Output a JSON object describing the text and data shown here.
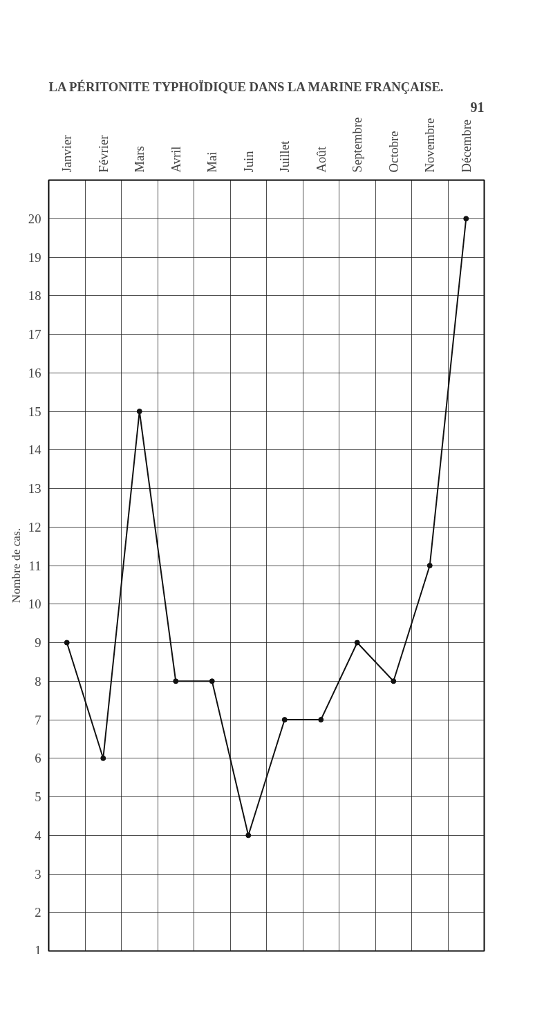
{
  "chart_data": {
    "type": "line",
    "title": "LA PÉRITONITE TYPHOÏDIQUE DANS LA MARINE FRANÇAISE.",
    "ylabel": "Nombre de cas.",
    "annotations": [
      "91"
    ],
    "categories": [
      "Janvier",
      "Février",
      "Mars",
      "Avril",
      "Mai",
      "Juin",
      "Juillet",
      "Août",
      "Septembre",
      "Octobre",
      "Novembre",
      "Décembre"
    ],
    "series": [
      {
        "color": "#111111",
        "values": [
          9,
          6,
          15,
          8,
          8,
          4,
          7,
          7,
          9,
          8,
          11,
          20
        ]
      }
    ],
    "ylim": [
      1,
      21
    ],
    "yticks": [
      1,
      2,
      3,
      4,
      5,
      6,
      7,
      8,
      9,
      10,
      11,
      12,
      13,
      14,
      15,
      16,
      17,
      18,
      19,
      20
    ],
    "grid": true,
    "marker": "circle",
    "line_style": "solid"
  }
}
